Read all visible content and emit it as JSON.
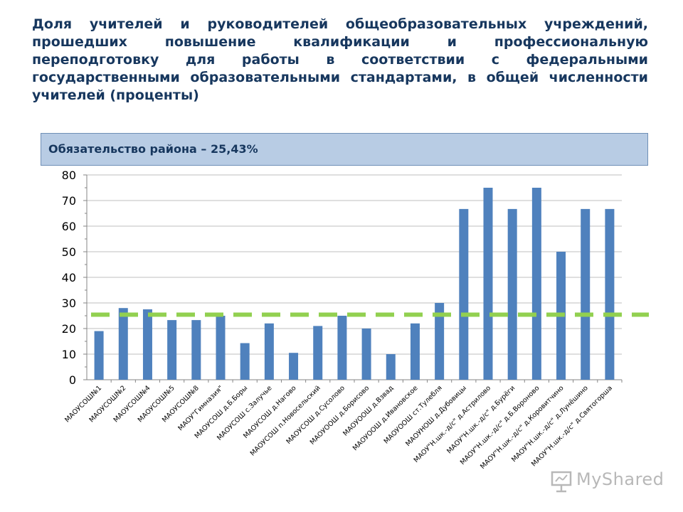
{
  "title": "Доля учителей и руководителей общеобразовательных учреждений, прошедших повышение квалификации и профессиональную переподготовку для работы в соответствии с федеральными государственными образовательными стандартами, в общей численности учителей (проценты)",
  "commitment_label": "Обязательство района – 25,43%",
  "watermark": {
    "text": "MyShared",
    "icon": "presentation-board-icon"
  },
  "colors": {
    "bar": "#4f81bd",
    "reference_line": "#92d050",
    "title": "#17375e",
    "box": "#b8cce4"
  },
  "chart_data": {
    "type": "bar",
    "categories": [
      "МАОУСОШ№1",
      "МАОУСОШ№2",
      "МАОУСОШ№4",
      "МАОУСОШ№5",
      "МАОУСОШ№8",
      "МАОУ\"Гимназия\"",
      "МАОУСОШ д.Б.Боры",
      "МАОУСОШ с.Залучье",
      "МАОУСОШ д.Нагово",
      "МАОУСОШ п.Новосельский",
      "МАОУСОШ д.Сусолово",
      "МАОУООШ д.Борисово",
      "МАОУООШ д.Взвад",
      "МАОУООШ д.Ивановское",
      "МАОУООШ ст.Тулебля",
      "МАОУНОШ д.Дубовицы",
      "МАОУ\"Н.шк.-д/с\" д.Астрилово",
      "МАОУ\"Н.шк.-д/с\" д.Бурёги",
      "МАОУ\"Н.шк.-д/с\" д.Б.Вороново",
      "МАОУ\"Н.шк.-д/с\" д.Коровитчино",
      "МАОУ\"Н.шк.-д/с\" д.Лунёшино",
      "МАОУ\"Н.шк.-д/с\" д.Святогорша"
    ],
    "values": [
      19,
      28,
      27.5,
      23.3,
      23.3,
      25,
      14.3,
      22,
      10.5,
      21,
      25,
      20,
      10,
      22,
      30,
      66.7,
      75,
      66.7,
      75,
      50,
      66.7,
      66.7
    ],
    "reference_line": {
      "value": 25.43,
      "style": "dashed"
    },
    "ylim": [
      0,
      80
    ],
    "yticks": [
      "0",
      "10",
      "20",
      "30",
      "40",
      "50",
      "60",
      "70",
      "80"
    ],
    "grid": true,
    "legend": "none"
  }
}
